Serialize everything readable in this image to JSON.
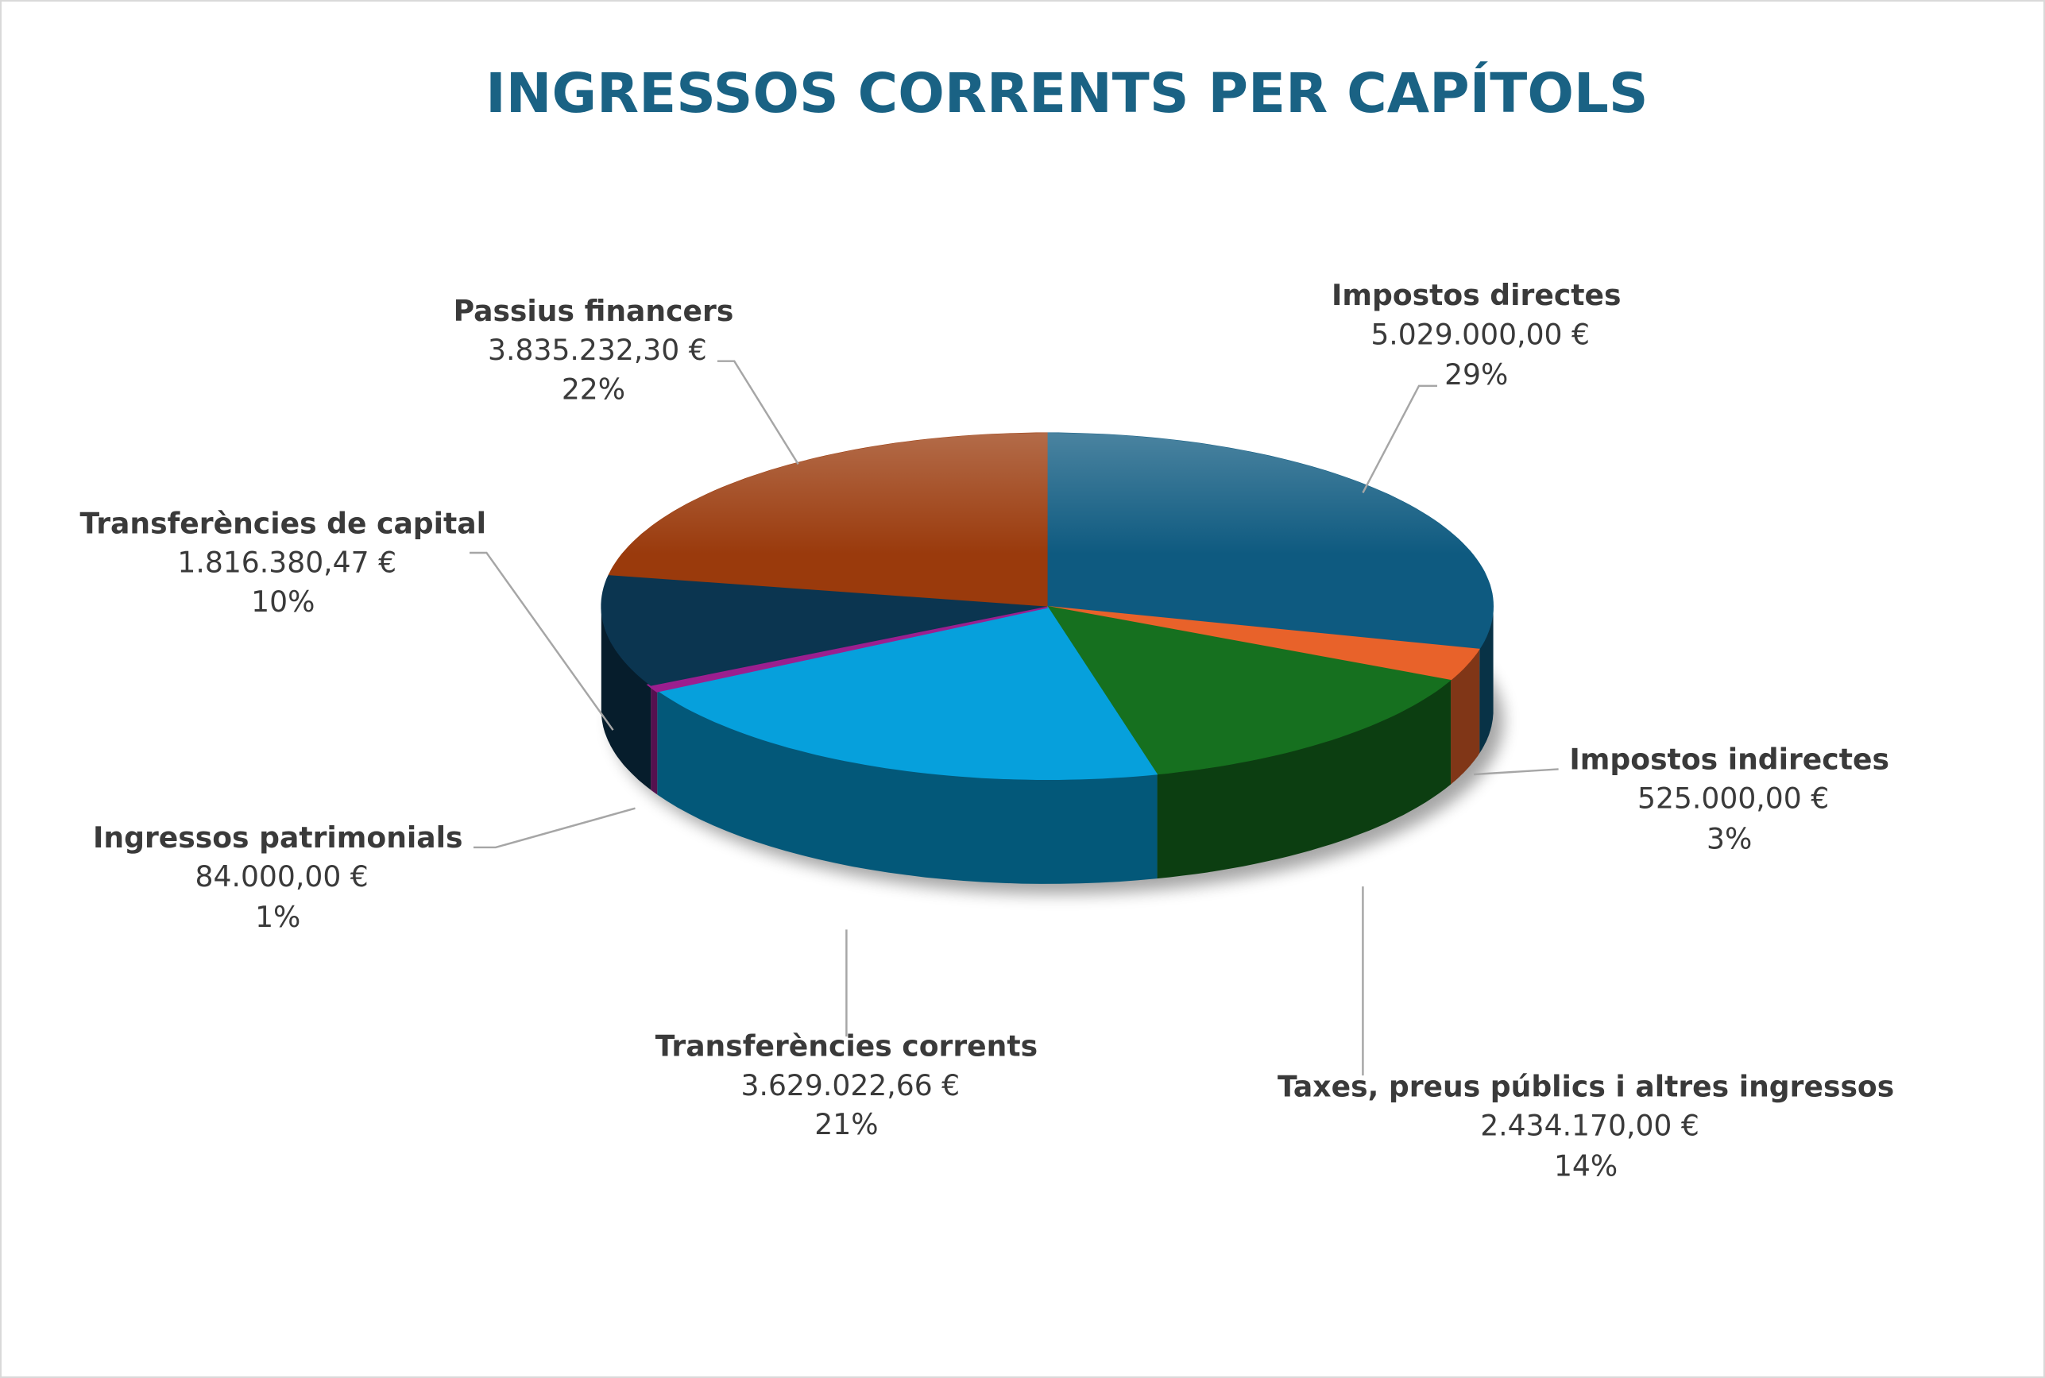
{
  "chart_data": {
    "type": "pie",
    "style": "3d",
    "title": "INGRESSOS CORRENTS PER CAPÍTOLS",
    "slices": [
      {
        "label": "Impostos directes",
        "value": 5029000.0,
        "value_text": "5.029.000,00 €",
        "percent_text": "29%",
        "color": "#0e5a80"
      },
      {
        "label": "Impostos indirectes",
        "value": 525000.0,
        "value_text": "525.000,00 €",
        "percent_text": "3%",
        "color": "#e8622a"
      },
      {
        "label": "Taxes, preus públics i altres ingressos",
        "value": 2434170.0,
        "value_text": "2.434.170,00 €",
        "percent_text": "14%",
        "color": "#16701f"
      },
      {
        "label": "Transferències corrents",
        "value": 3629022.66,
        "value_text": "3.629.022,66 €",
        "percent_text": "21%",
        "color": "#06a0dc"
      },
      {
        "label": "Ingressos patrimonials",
        "value": 84000.0,
        "value_text": "84.000,00 €",
        "percent_text": "1%",
        "color": "#9b1f8f"
      },
      {
        "label": "Transferències de capital",
        "value": 1816380.47,
        "value_text": "1.816.380,47 €",
        "percent_text": "10%",
        "color": "#0b3550"
      },
      {
        "label": "Passius financers",
        "value": 3835232.3,
        "value_text": "3.835.232,30 €",
        "percent_text": "22%",
        "color": "#9a3a0c"
      }
    ],
    "start_angle": "top",
    "direction": "clockwise",
    "legend": "none"
  }
}
